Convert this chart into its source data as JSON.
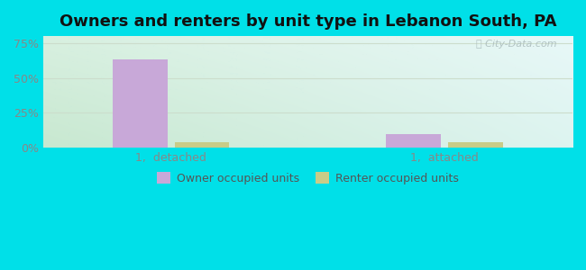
{
  "title": "Owners and renters by unit type in Lebanon South, PA",
  "categories": [
    "1,  detached",
    "1,  attached"
  ],
  "owner_values": [
    63,
    10
  ],
  "renter_values": [
    4,
    4
  ],
  "owner_color": "#c8a8d8",
  "renter_color": "#c8cc88",
  "bar_width": 0.3,
  "group_positions": [
    1.0,
    2.5
  ],
  "xlim": [
    0.3,
    3.2
  ],
  "ylim": [
    0,
    80
  ],
  "yticks": [
    0,
    25,
    50,
    75
  ],
  "ytick_labels": [
    "0%",
    "25%",
    "50%",
    "75%"
  ],
  "background_outer": "#00e0e8",
  "watermark": "City-Data.com",
  "legend_labels": [
    "Owner occupied units",
    "Renter occupied units"
  ],
  "title_fontsize": 13,
  "label_fontsize": 9,
  "tick_fontsize": 9,
  "grid_color": "#ccddcc",
  "tick_color": "#888888"
}
